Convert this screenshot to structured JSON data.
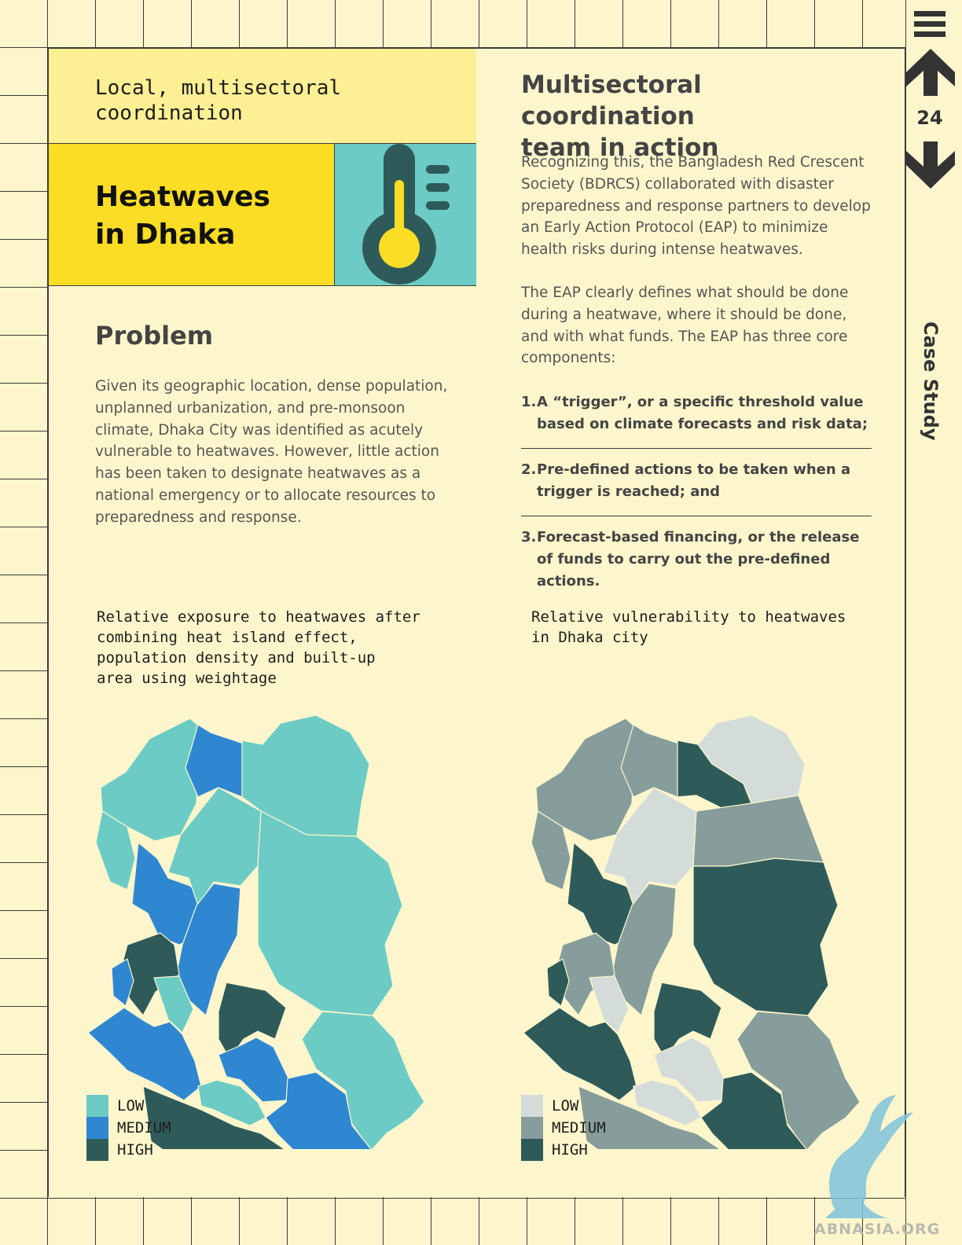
{
  "colors": {
    "background": "#fdf6cc",
    "grid_line": "#3b3b3b",
    "kicker_bg": "#fdef94",
    "title_bg": "#fbdd25",
    "icon_bg": "#6ccbc5",
    "exposure_low": "#6ccbc5",
    "exposure_medium": "#2f87d2",
    "exposure_high": "#2e5b5a",
    "vulnerability_low": "#d4dcd9",
    "vulnerability_medium": "#869d9b",
    "vulnerability_high": "#2e5b5a"
  },
  "header": {
    "kicker": "Local, multisectoral\ncoordination",
    "title": "Heatwaves\nin Dhaka",
    "icon": "thermometer-icon"
  },
  "problem": {
    "heading": "Problem",
    "text": "Given its geographic location, dense population, unplanned urbanization, and pre-monsoon climate, Dhaka City was identified as acutely vulnerable to heatwaves. However, little action has been taken to designate heatwaves as a national emergency or to allocate resources to preparedness and response."
  },
  "right": {
    "heading": "Multisectoral coordination\nteam in action",
    "intro": "Recognizing this, the Bangladesh Red Crescent Society (BDRCS) collaborated with disaster preparedness and response partners to develop an Early Action Protocol (EAP) to minimize health risks during intense heatwaves.",
    "eap": "The EAP clearly defines what should be done during a heatwave, where it should be done, and with what funds. The EAP has three core components:",
    "components": [
      {
        "num": "1.",
        "text": "A “trigger”, or a specific threshold value based on climate forecasts and risk data;"
      },
      {
        "num": "2.",
        "text": "Pre-defined actions to be taken when a trigger is reached; and"
      },
      {
        "num": "3.",
        "text": "Forecast-based financing, or the release of funds to carry out the pre-defined actions."
      }
    ]
  },
  "maps": {
    "exposure": {
      "caption": "Relative exposure to heatwaves after\ncombining heat island effect,\npopulation density and built-up\narea using weightage",
      "legend": [
        "LOW",
        "MEDIUM",
        "HIGH"
      ]
    },
    "vulnerability": {
      "caption": "Relative vulnerability to heatwaves\nin Dhaka city",
      "legend": [
        "LOW",
        "MEDIUM",
        "HIGH"
      ]
    }
  },
  "nav": {
    "page_number": "24",
    "section": "Case Study",
    "menu_icon": "menu-icon",
    "up_icon": "arrow-up-icon",
    "down_icon": "arrow-down-icon"
  },
  "watermark": {
    "text": "ABNASIA.ORG"
  }
}
